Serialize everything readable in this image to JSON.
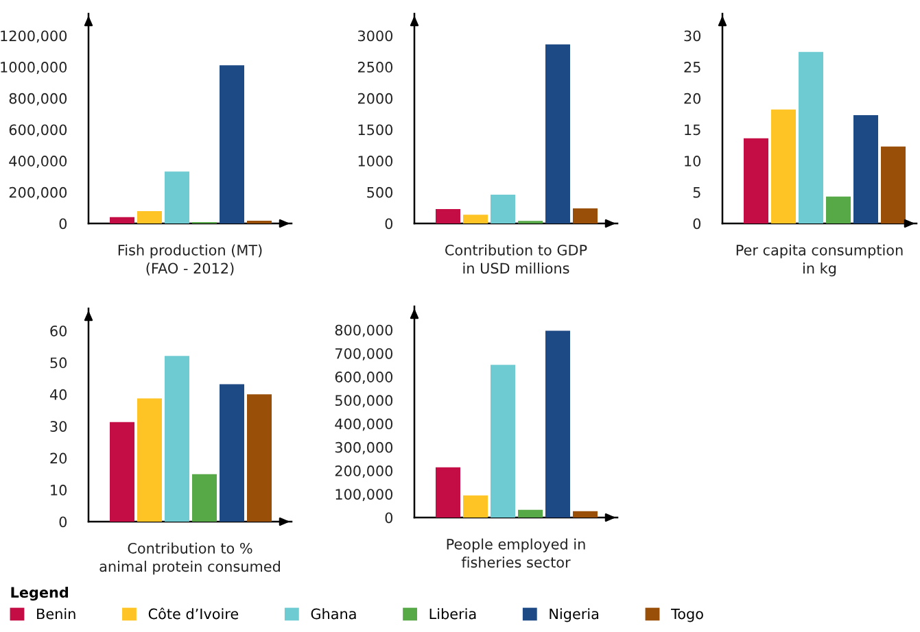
{
  "chart_data": [
    {
      "type": "bar",
      "xlabel": "Fish production (MT)\n(FAO - 2012)",
      "categories": [
        null
      ],
      "series": [
        {
          "name": "Benin",
          "color": "#c40d45",
          "values": [
            40000
          ]
        },
        {
          "name": "Côte d’Ivoire",
          "color": "#fec325",
          "values": [
            79000
          ]
        },
        {
          "name": "Ghana",
          "color": "#6ecbd1",
          "values": [
            332000
          ]
        },
        {
          "name": "Liberia",
          "color": "#57a948",
          "values": [
            9000
          ]
        },
        {
          "name": "Nigeria",
          "color": "#1d4984",
          "values": [
            1011000
          ]
        },
        {
          "name": "Togo",
          "color": "#9a4f08",
          "values": [
            18000
          ]
        }
      ],
      "ylim": [
        0,
        1340000
      ],
      "yticks": [
        0,
        {
          "value": 200000,
          "label": "200,000"
        },
        {
          "value": 400000,
          "label": "400,000"
        },
        {
          "value": 600000,
          "label": "600,000"
        },
        {
          "value": 800000,
          "label": "800,000"
        },
        {
          "value": 1000000,
          "label": "1000,000"
        },
        {
          "value": 1200000,
          "label": "1200,000"
        }
      ],
      "tick_labels": "y",
      "legend": "bottom",
      "legend_title": "Legend"
    },
    {
      "type": "bar",
      "xlabel": "Contribution to GDP\nin USD millions",
      "categories": [
        null
      ],
      "series": [
        {
          "color": "#c40d45",
          "values": [
            230
          ]
        },
        {
          "color": "#fec325",
          "values": [
            140
          ]
        },
        {
          "color": "#6ecbd1",
          "values": [
            460
          ]
        },
        {
          "color": "#57a948",
          "values": [
            40
          ]
        },
        {
          "color": "#1d4984",
          "values": [
            2860
          ]
        },
        {
          "color": "#9a4f08",
          "values": [
            240
          ]
        }
      ],
      "ylim": [
        0,
        3350
      ],
      "yticks": [
        0,
        500,
        1000,
        1500,
        2000,
        2500,
        3000
      ],
      "tick_labels": "y"
    },
    {
      "type": "bar",
      "xlabel": "Per capita consumption\nin kg",
      "categories": [
        null
      ],
      "series": [
        {
          "color": "#c40d45",
          "values": [
            13.6
          ]
        },
        {
          "color": "#fec325",
          "values": [
            18.2
          ]
        },
        {
          "color": "#6ecbd1",
          "values": [
            27.4
          ]
        },
        {
          "color": "#57a948",
          "values": [
            4.3
          ]
        },
        {
          "color": "#1d4984",
          "values": [
            17.3
          ]
        },
        {
          "color": "#9a4f08",
          "values": [
            12.3
          ]
        }
      ],
      "ylim": [
        0,
        33.5
      ],
      "yticks": [
        0,
        5,
        10,
        15,
        20,
        25,
        30
      ],
      "tick_labels": "y"
    },
    {
      "type": "bar",
      "xlabel": "Contribution to %\nanimal protein consumed",
      "categories": [
        null
      ],
      "series": [
        {
          "color": "#c40d45",
          "values": [
            31.3
          ]
        },
        {
          "color": "#fec325",
          "values": [
            38.7
          ]
        },
        {
          "color": "#6ecbd1",
          "values": [
            52.1
          ]
        },
        {
          "color": "#57a948",
          "values": [
            14.9
          ]
        },
        {
          "color": "#1d4984",
          "values": [
            43.2
          ]
        },
        {
          "color": "#9a4f08",
          "values": [
            40.0
          ]
        }
      ],
      "ylim": [
        0,
        67
      ],
      "yticks": [
        0,
        10,
        20,
        30,
        40,
        50,
        60
      ],
      "tick_labels": "y"
    },
    {
      "type": "bar",
      "xlabel": "People employed in\nfisheries sector",
      "categories": [
        null
      ],
      "series": [
        {
          "color": "#c40d45",
          "values": [
            214000
          ]
        },
        {
          "color": "#fec325",
          "values": [
            94000
          ]
        },
        {
          "color": "#6ecbd1",
          "values": [
            651000
          ]
        },
        {
          "color": "#57a948",
          "values": [
            33000
          ]
        },
        {
          "color": "#1d4984",
          "values": [
            796000
          ]
        },
        {
          "color": "#9a4f08",
          "values": [
            27000
          ]
        }
      ],
      "ylim": [
        0,
        900000
      ],
      "yticks": [
        0,
        {
          "value": 100000,
          "label": "100,000"
        },
        {
          "value": 200000,
          "label": "200,000"
        },
        {
          "value": 300000,
          "label": "300,000"
        },
        {
          "value": 400000,
          "label": "400,000"
        },
        {
          "value": 500000,
          "label": "500,000"
        },
        {
          "value": 600000,
          "label": "600,000"
        },
        {
          "value": 700000,
          "label": "700,000"
        },
        {
          "value": 800000,
          "label": "800,000"
        }
      ],
      "tick_labels": "y"
    }
  ]
}
